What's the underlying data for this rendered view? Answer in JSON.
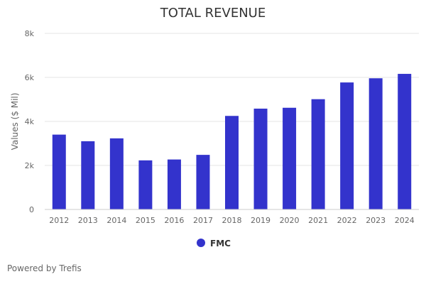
{
  "chart_data": {
    "type": "bar",
    "title": "TOTAL REVENUE",
    "ylabel": "Values ($ Mil)",
    "xlabel": "",
    "categories": [
      "2012",
      "2013",
      "2014",
      "2015",
      "2016",
      "2017",
      "2018",
      "2019",
      "2020",
      "2021",
      "2022",
      "2023",
      "2024"
    ],
    "series": [
      {
        "name": "FMC",
        "color": "#3333cc",
        "values": [
          3400,
          3100,
          3230,
          2230,
          2270,
          2480,
          4250,
          4580,
          4620,
          5010,
          5770,
          5960,
          6160
        ]
      }
    ],
    "ylim": [
      0,
      8000
    ],
    "yticks": [
      0,
      2000,
      4000,
      6000,
      8000
    ],
    "ytick_labels": [
      "0",
      "2k",
      "4k",
      "6k",
      "8k"
    ],
    "grid": true,
    "legend": "bottom-center"
  },
  "credit": "Powered by Trefis"
}
